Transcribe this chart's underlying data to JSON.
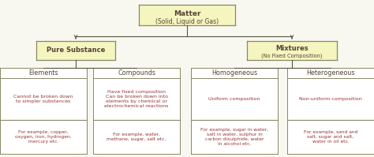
{
  "bg_color": "#f8f8f0",
  "box_yellow": "#f5f5c0",
  "box_white": "#ffffff",
  "border_color": "#888866",
  "text_dark": "#554433",
  "text_red": "#993333",
  "arrow_color": "#555544",
  "title_line1": "Matter",
  "title_line2": "(Solid, Liquid or Gas)",
  "level2_left": "Pure Substance",
  "level2_right": "Mixtures\n(No Fixed Composition)",
  "level3": [
    "Elements",
    "Compounds",
    "Homogeneous",
    "Heterogeneous"
  ],
  "level3_desc": [
    "Cannot be broken down\nto simpler substances",
    "Have fixed composition\nCan be broken down into\nelements by chemical or\nelectrochemical reactions",
    "Uniform composition",
    "Non-uniform composition"
  ],
  "level3_example": [
    "For example, copper,\noxygen, iron, hydrogen,\nmercury etc.",
    "For example, water,\nmethane, sugar, salt etc.",
    "For example, sugar in water,\nsalt in water, sulphur in\ncarbon disulphide, water\nin alcohol etc.",
    "For example, sand and\nsalt, sugar and salt,\nwater in oil etc."
  ],
  "fw": 4.74,
  "fh": 1.99,
  "dpi": 100
}
